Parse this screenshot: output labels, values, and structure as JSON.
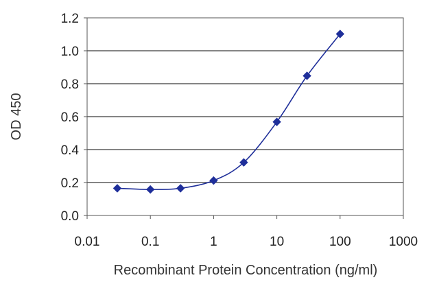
{
  "chart_data": {
    "type": "line",
    "title": "",
    "xlabel": "Recombinant Protein Concentration (ng/ml)",
    "ylabel": "OD 450",
    "x_scale": "log",
    "xlim": [
      0.01,
      1000
    ],
    "ylim": [
      0.0,
      1.2
    ],
    "x_ticks": [
      0.01,
      0.1,
      1,
      10,
      100,
      1000
    ],
    "x_tick_labels": [
      "0.01",
      "0.1",
      "1",
      "10",
      "100",
      "1000"
    ],
    "y_ticks": [
      0.0,
      0.2,
      0.4,
      0.6,
      0.8,
      1.0,
      1.2
    ],
    "y_tick_labels": [
      "0.0",
      "0.2",
      "0.4",
      "0.6",
      "0.8",
      "1.0",
      "1.2"
    ],
    "grid": "horizontal",
    "legend": "none",
    "series": [
      {
        "x": [
          0.03,
          0.1,
          0.3,
          1,
          3,
          10,
          30,
          100
        ],
        "y": [
          0.165,
          0.158,
          0.165,
          0.212,
          0.322,
          0.568,
          0.848,
          1.102
        ],
        "color": "#1f2f9a"
      }
    ]
  }
}
